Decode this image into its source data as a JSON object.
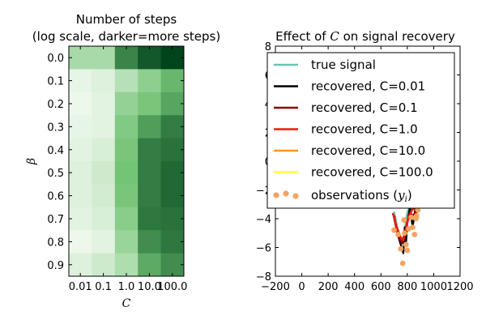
{
  "chart_data": [
    {
      "type": "heatmap",
      "title": "Number of steps",
      "subtitle": "(log scale, darker=more steps)",
      "xlabel": "C",
      "ylabel": "β",
      "x_categories": [
        "0.01",
        "0.1",
        "1.0",
        "10.0",
        "100.0"
      ],
      "y_categories": [
        "0.0",
        "0.1",
        "0.2",
        "0.3",
        "0.4",
        "0.5",
        "0.6",
        "0.7",
        "0.8",
        "0.9"
      ],
      "values": [
        [
          0.3,
          0.3,
          0.75,
          0.92,
          1.0
        ],
        [
          0.06,
          0.1,
          0.25,
          0.4,
          0.55
        ],
        [
          0.04,
          0.08,
          0.38,
          0.48,
          0.62
        ],
        [
          0.06,
          0.08,
          0.45,
          0.65,
          0.78
        ],
        [
          0.08,
          0.12,
          0.48,
          0.78,
          0.82
        ],
        [
          0.1,
          0.16,
          0.5,
          0.78,
          0.86
        ],
        [
          0.1,
          0.14,
          0.48,
          0.78,
          0.86
        ],
        [
          0.08,
          0.12,
          0.42,
          0.8,
          0.82
        ],
        [
          0.04,
          0.08,
          0.36,
          0.72,
          0.8
        ],
        [
          0.1,
          0.16,
          0.28,
          0.6,
          0.72
        ]
      ],
      "colormap": "Greens"
    },
    {
      "type": "line",
      "title_prefix": "Effect of ",
      "title_var": "C",
      "title_suffix": " on signal recovery",
      "xlim": [
        -200,
        1200
      ],
      "ylim": [
        -8,
        8
      ],
      "xticks": [
        -200,
        0,
        200,
        400,
        600,
        800,
        1000,
        1200
      ],
      "xtick_labels": [
        "−200",
        "0",
        "200",
        "400",
        "600",
        "800",
        "1000",
        "1200"
      ],
      "yticks": [
        -8,
        -6,
        -4,
        -2,
        0,
        2,
        4,
        6,
        8
      ],
      "ytick_labels": [
        "−8",
        "−6",
        "−4",
        "−2",
        "0",
        "2",
        "4",
        "6",
        "8"
      ],
      "legend_position": "upper right",
      "series": [
        {
          "name": "true signal",
          "color": "#6cc3b4",
          "width": 2,
          "x": [
            700,
            730,
            760,
            770,
            790,
            800,
            830,
            860,
            880
          ],
          "y": [
            -3.5,
            -4.8,
            -5.6,
            -5.6,
            -4.0,
            -3.5,
            -3.0,
            -3.2,
            -3.5
          ]
        },
        {
          "name": "recovered, C=0.01",
          "color": "#000000",
          "width": 2.2,
          "x": [
            700,
            730,
            760,
            770,
            780,
            790,
            800,
            820,
            840,
            860,
            880
          ],
          "y": [
            -4.0,
            -5.2,
            -6.1,
            -6.4,
            -4.6,
            -5.8,
            -4.2,
            -3.2,
            -4.6,
            -3.4,
            -4.0
          ]
        },
        {
          "name": "recovered, C=0.1",
          "color": "#8b0000",
          "width": 2.5,
          "x": [
            700,
            720,
            740,
            760,
            780,
            800,
            820,
            840,
            860,
            880
          ],
          "y": [
            -3.8,
            -4.8,
            -5.4,
            -5.7,
            -5.0,
            -4.2,
            -3.6,
            -3.8,
            -3.6,
            -3.5
          ]
        },
        {
          "name": "recovered, C=1.0",
          "color": "#ee1c0d",
          "width": 2.5,
          "x": [
            690,
            720,
            750,
            770,
            790,
            810,
            840,
            870,
            890
          ],
          "y": [
            -3.6,
            -4.6,
            -5.3,
            -5.5,
            -4.7,
            -3.9,
            -3.3,
            -3.4,
            -3.4
          ]
        },
        {
          "name": "recovered, C=10.0",
          "color": "#ff9900",
          "width": 2,
          "x": [],
          "y": []
        },
        {
          "name": "recovered, C=100.0",
          "color": "#ffff33",
          "width": 2,
          "x": [],
          "y": []
        }
      ],
      "observations": {
        "name_prefix": "observations (",
        "name_var": "y",
        "name_sub": "i",
        "name_suffix": ")",
        "color": "#f4a460",
        "x": [
          700,
          730,
          750,
          765,
          775,
          780,
          790,
          800,
          810,
          830,
          840,
          855,
          865,
          870,
          880
        ],
        "y": [
          -4.8,
          -5.1,
          -6.1,
          -7.1,
          -4.1,
          -5.0,
          -5.8,
          -6.2,
          -4.7,
          -3.9,
          -4.6,
          -5.1,
          -4.0,
          -3.8,
          -3.4
        ]
      }
    }
  ]
}
